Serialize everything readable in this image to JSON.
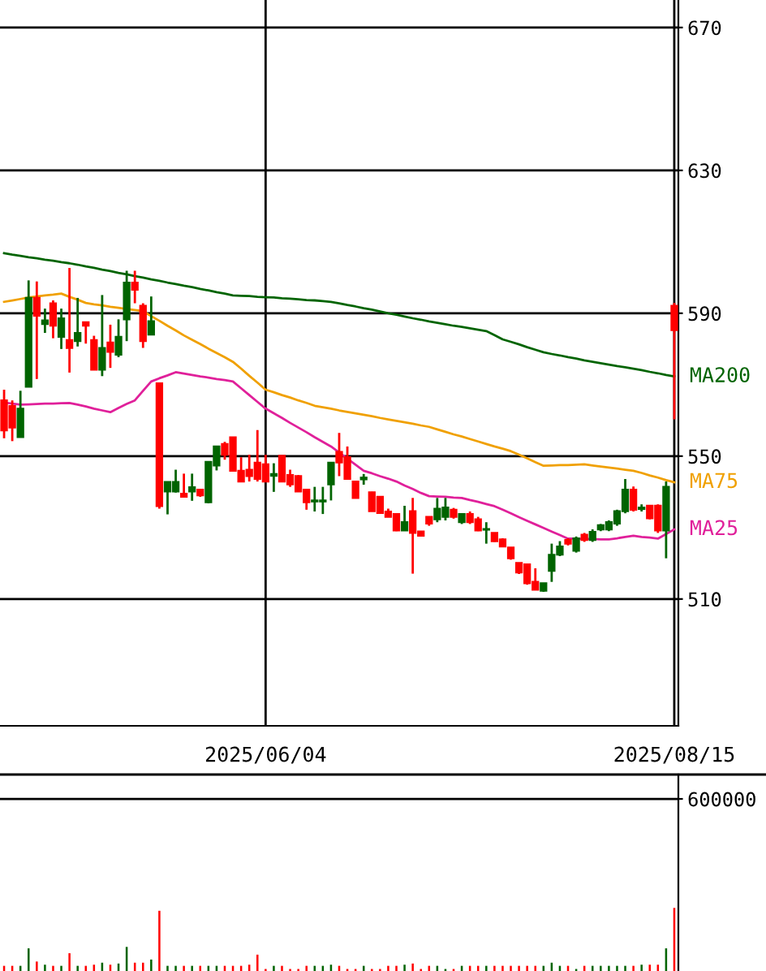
{
  "chart_data": [
    {
      "type": "candlestick",
      "categories": [
        null,
        null,
        null,
        null,
        null,
        null,
        null,
        null,
        null,
        null,
        null,
        null,
        null,
        null,
        null,
        null,
        null,
        null,
        null,
        null,
        null,
        null,
        null,
        null,
        null,
        null,
        null,
        null,
        null,
        null,
        null,
        null,
        "2025/06/04",
        null,
        null,
        null,
        null,
        null,
        null,
        null,
        null,
        null,
        null,
        null,
        null,
        null,
        null,
        null,
        null,
        null,
        null,
        null,
        null,
        null,
        null,
        null,
        null,
        null,
        null,
        null,
        null,
        null,
        null,
        null,
        null,
        null,
        null,
        null,
        null,
        null,
        null,
        null,
        null,
        null,
        null,
        null,
        null,
        null,
        null,
        null,
        null,
        null,
        "2025/08/15"
      ],
      "ohlc": [
        [
          565.6,
          568.6,
          555.0,
          557.2
        ],
        [
          564.0,
          565.6,
          554.2,
          558.0
        ],
        [
          555.3,
          568.3,
          555.3,
          563.3
        ],
        [
          569.4,
          599.2,
          569.4,
          594.3
        ],
        [
          594.3,
          598.9,
          571.6,
          589.3
        ],
        [
          587.0,
          591.3,
          584.5,
          588.0
        ],
        [
          592.8,
          593.6,
          583.0,
          586.5
        ],
        [
          583.4,
          591.3,
          580.0,
          588.6
        ],
        [
          582.5,
          602.7,
          573.4,
          580.3
        ],
        [
          582.2,
          594.3,
          580.7,
          584.5
        ],
        [
          587.5,
          587.5,
          581.5,
          586.5
        ],
        [
          582.5,
          583.7,
          574.2,
          574.2
        ],
        [
          574.2,
          595.1,
          572.4,
          580.3
        ],
        [
          581.8,
          586.8,
          574.7,
          579.2
        ],
        [
          578.4,
          588.3,
          577.7,
          583.4
        ],
        [
          588.3,
          601.9,
          582.2,
          598.6
        ],
        [
          598.6,
          601.9,
          592.8,
          596.6
        ],
        [
          592.1,
          592.8,
          580.3,
          582.2
        ],
        [
          584.0,
          594.7,
          584.0,
          587.8
        ],
        [
          570.4,
          570.4,
          535.3,
          536.0
        ],
        [
          540.1,
          542.8,
          533.7,
          542.8
        ],
        [
          540.1,
          546.2,
          539.8,
          542.8
        ],
        [
          539.5,
          545.1,
          538.6,
          538.6
        ],
        [
          540.1,
          545.1,
          537.5,
          541.3
        ],
        [
          540.6,
          540.6,
          538.6,
          539.0
        ],
        [
          537.1,
          548.4,
          536.8,
          548.4
        ],
        [
          547.4,
          552.7,
          546.0,
          552.7
        ],
        [
          553.4,
          554.0,
          549.0,
          550.4
        ],
        [
          555.3,
          555.3,
          545.9,
          545.9
        ],
        [
          545.9,
          549.7,
          542.9,
          542.9
        ],
        [
          546.2,
          550.4,
          542.9,
          544.4
        ],
        [
          548.2,
          557.3,
          542.9,
          543.6
        ],
        [
          547.7,
          550.4,
          542.9,
          542.9
        ],
        [
          544.5,
          548.0,
          540.0,
          545.0
        ],
        [
          550.1,
          550.1,
          542.9,
          542.9
        ],
        [
          544.7,
          546.2,
          541.4,
          542.1
        ],
        [
          544.4,
          544.7,
          540.1,
          540.1
        ],
        [
          540.6,
          540.6,
          535.0,
          537.1
        ],
        [
          537.3,
          541.4,
          534.5,
          537.6
        ],
        [
          537.3,
          541.4,
          533.8,
          537.6
        ],
        [
          542.1,
          548.2,
          537.6,
          548.2
        ],
        [
          551.2,
          556.5,
          544.4,
          548.2
        ],
        [
          549.7,
          552.7,
          543.6,
          543.6
        ],
        [
          542.9,
          542.9,
          538.3,
          538.3
        ],
        [
          543.5,
          545.0,
          542.0,
          544.0
        ],
        [
          539.9,
          540.0,
          534.6,
          534.6
        ],
        [
          538.6,
          538.6,
          534.0,
          534.1
        ],
        [
          534.5,
          535.3,
          533.0,
          533.0
        ],
        [
          533.8,
          534.0,
          529.0,
          529.2
        ],
        [
          529.2,
          536.1,
          529.2,
          531.5
        ],
        [
          534.6,
          538.3,
          517.1,
          528.5
        ],
        [
          528.9,
          529.0,
          527.5,
          527.7
        ],
        [
          533.0,
          533.0,
          530.5,
          531.1
        ],
        [
          532.3,
          538.3,
          531.5,
          535.3
        ],
        [
          533.0,
          538.3,
          532.0,
          535.6
        ],
        [
          535.0,
          535.5,
          532.5,
          533.0
        ],
        [
          531.5,
          534.0,
          531.0,
          533.8
        ],
        [
          533.8,
          534.5,
          531.0,
          531.5
        ],
        [
          532.3,
          533.0,
          529.0,
          529.2
        ],
        [
          529.4,
          531.5,
          525.5,
          529.6
        ],
        [
          528.5,
          528.5,
          526.0,
          526.2
        ],
        [
          526.7,
          527.0,
          524.5,
          524.7
        ],
        [
          524.4,
          524.4,
          521.0,
          521.4
        ],
        [
          520.1,
          520.1,
          517.0,
          517.4
        ],
        [
          519.7,
          519.7,
          514.0,
          514.4
        ],
        [
          514.8,
          518.6,
          512.5,
          512.6
        ],
        [
          512.3,
          514.5,
          512.0,
          514.4
        ],
        [
          517.9,
          525.5,
          514.8,
          522.4
        ],
        [
          522.4,
          526.2,
          522.0,
          524.7
        ],
        [
          526.5,
          527.0,
          525.0,
          525.5
        ],
        [
          523.5,
          527.5,
          523.0,
          527.0
        ],
        [
          528.0,
          528.5,
          526.0,
          526.5
        ],
        [
          526.5,
          529.5,
          526.0,
          528.8
        ],
        [
          529.5,
          531.0,
          529.0,
          530.7
        ],
        [
          529.5,
          532.0,
          529.0,
          531.5
        ],
        [
          531.1,
          535.0,
          530.5,
          534.6
        ],
        [
          534.6,
          543.6,
          534.0,
          540.6
        ],
        [
          540.6,
          541.5,
          534.5,
          535.0
        ],
        [
          535.2,
          536.5,
          534.5,
          535.6
        ],
        [
          536.1,
          536.1,
          532.3,
          532.6
        ],
        [
          536.1,
          536.5,
          528.5,
          529.2
        ],
        [
          529.2,
          542.9,
          521.4,
          541.4
        ],
        [
          592.1,
          592.9,
          560.3,
          585.3
        ]
      ],
      "colors": [
        "#ff0000",
        "#ff0000",
        "#006400",
        "#006400",
        "#ff0000",
        "#006400",
        "#ff0000",
        "#006400",
        "#ff0000",
        "#006400",
        "#ff0000",
        "#ff0000",
        "#006400",
        "#ff0000",
        "#006400",
        "#006400",
        "#ff0000",
        "#ff0000",
        "#006400",
        "#ff0000",
        "#006400",
        "#006400",
        "#ff0000",
        "#006400",
        "#ff0000",
        "#006400",
        "#006400",
        "#ff0000",
        "#ff0000",
        "#ff0000",
        "#ff0000",
        "#ff0000",
        "#ff0000",
        "#006400",
        "#ff0000",
        "#ff0000",
        "#ff0000",
        "#ff0000",
        "#006400",
        "#006400",
        "#006400",
        "#ff0000",
        "#ff0000",
        "#ff0000",
        "#006400",
        "#ff0000",
        "#ff0000",
        "#ff0000",
        "#ff0000",
        "#006400",
        "#ff0000",
        "#ff0000",
        "#ff0000",
        "#006400",
        "#006400",
        "#ff0000",
        "#006400",
        "#ff0000",
        "#ff0000",
        "#006400",
        "#ff0000",
        "#ff0000",
        "#ff0000",
        "#ff0000",
        "#ff0000",
        "#ff0000",
        "#006400",
        "#006400",
        "#006400",
        "#ff0000",
        "#006400",
        "#ff0000",
        "#006400",
        "#006400",
        "#006400",
        "#006400",
        "#006400",
        "#ff0000",
        "#006400",
        "#ff0000",
        "#ff0000",
        "#006400",
        "#ff0000"
      ],
      "series": [
        {
          "name": "MA200",
          "type": "line",
          "color": "#006400",
          "values": [
            606.8,
            606.4,
            606.1,
            605.7,
            605.4,
            605.0,
            604.7,
            604.3,
            604.0,
            603.6,
            603.1,
            602.7,
            602.2,
            601.8,
            601.3,
            600.9,
            600.4,
            600.0,
            599.5,
            599.1,
            598.6,
            598.2,
            597.7,
            597.3,
            596.8,
            596.4,
            595.9,
            595.5,
            595.0,
            594.9,
            594.8,
            594.6,
            594.5,
            594.4,
            594.2,
            594.1,
            593.9,
            593.7,
            593.6,
            593.4,
            593.2,
            592.8,
            592.3,
            591.9,
            591.4,
            591.0,
            590.5,
            590.0,
            589.6,
            589.1,
            588.6,
            588.2,
            587.7,
            587.3,
            586.9,
            586.5,
            586.2,
            585.8,
            585.4,
            585.0,
            583.9,
            582.7,
            582.0,
            581.3,
            580.5,
            579.8,
            579.1,
            578.6,
            578.2,
            577.7,
            577.3,
            576.8,
            576.4,
            576.0,
            575.6,
            575.2,
            574.9,
            574.5,
            574.1,
            573.6,
            573.2,
            572.7,
            572.3
          ]
        },
        {
          "name": "MA75",
          "type": "line",
          "color": "#f0a000",
          "values": [
            593.2,
            593.6,
            594.0,
            594.4,
            594.7,
            595.0,
            595.2,
            595.5,
            594.6,
            593.8,
            592.9,
            592.5,
            592.2,
            591.8,
            591.5,
            591.2,
            590.9,
            590.6,
            589.2,
            587.9,
            586.5,
            585.2,
            583.8,
            582.6,
            581.4,
            580.1,
            578.9,
            577.7,
            576.4,
            574.5,
            572.5,
            570.6,
            568.6,
            567.9,
            567.1,
            566.4,
            565.6,
            564.9,
            564.1,
            563.7,
            563.3,
            562.8,
            562.4,
            562.0,
            561.6,
            561.2,
            560.7,
            560.3,
            559.9,
            559.5,
            559.1,
            558.6,
            558.2,
            557.5,
            556.8,
            556.1,
            555.5,
            554.8,
            554.1,
            553.4,
            552.7,
            552.1,
            551.4,
            550.4,
            549.4,
            548.3,
            547.3,
            547.4,
            547.5,
            547.5,
            547.6,
            547.7,
            547.4,
            547.1,
            546.8,
            546.5,
            546.2,
            545.9,
            545.3,
            544.6,
            544.0,
            543.3,
            542.7
          ]
        },
        {
          "name": "MA25",
          "type": "line",
          "color": "#e0209a",
          "values": [
            565.0,
            564.7,
            564.4,
            564.5,
            564.6,
            564.7,
            564.7,
            564.8,
            564.9,
            564.4,
            563.9,
            563.3,
            562.8,
            562.3,
            563.5,
            564.6,
            565.6,
            568.3,
            570.9,
            571.8,
            572.6,
            573.5,
            573.1,
            572.7,
            572.3,
            572.0,
            571.6,
            571.3,
            570.9,
            569.0,
            567.1,
            565.2,
            563.3,
            562.0,
            560.7,
            559.3,
            558.0,
            556.7,
            555.3,
            554.0,
            552.7,
            551.0,
            549.3,
            547.6,
            545.9,
            545.2,
            544.4,
            543.7,
            542.9,
            541.8,
            540.8,
            539.7,
            538.8,
            538.7,
            538.6,
            538.4,
            538.3,
            537.7,
            537.2,
            536.6,
            536.0,
            535.0,
            534.0,
            532.9,
            531.9,
            530.9,
            529.9,
            528.9,
            527.9,
            526.9,
            526.9,
            526.8,
            526.8,
            526.7,
            526.7,
            527.0,
            527.4,
            527.7,
            527.4,
            527.2,
            526.9,
            528.2,
            529.5
          ]
        }
      ],
      "ylim": [
        474.5,
        677.7
      ],
      "yticks": [
        510,
        550,
        590,
        630,
        670
      ],
      "grid": true
    },
    {
      "type": "bar",
      "tick_labels": "y",
      "ylim": [
        0,
        685000
      ],
      "yticks": [
        600000
      ],
      "grid": "y",
      "categories": [
        null,
        null,
        null,
        null,
        null,
        null,
        null,
        null,
        null,
        null,
        null,
        null,
        null,
        null,
        null,
        null,
        null,
        null,
        null,
        null,
        null,
        null,
        null,
        null,
        null,
        null,
        null,
        null,
        null,
        null,
        null,
        null,
        null,
        null,
        null,
        null,
        null,
        null,
        null,
        null,
        null,
        null,
        null,
        null,
        null,
        null,
        null,
        null,
        null,
        null,
        null,
        null,
        null,
        null,
        null,
        null,
        null,
        null,
        null,
        null,
        null,
        null,
        null,
        null,
        null,
        null,
        null,
        null,
        null,
        null,
        null,
        null,
        null,
        null,
        null,
        null,
        null,
        null,
        null,
        null,
        null,
        null,
        null
      ],
      "values": [
        18000,
        18000,
        18000,
        79000,
        33000,
        22000,
        18000,
        18000,
        62000,
        18000,
        18000,
        22000,
        29000,
        22000,
        26000,
        84000,
        29000,
        29000,
        40000,
        210000,
        18000,
        18000,
        18000,
        18000,
        18000,
        18000,
        18000,
        18000,
        18000,
        18000,
        22000,
        57000,
        7000,
        18000,
        18000,
        7000,
        7000,
        18000,
        18000,
        18000,
        22000,
        18000,
        7000,
        7000,
        18000,
        7000,
        7000,
        18000,
        18000,
        22000,
        26000,
        7000,
        18000,
        18000,
        7000,
        7000,
        18000,
        18000,
        18000,
        18000,
        18000,
        18000,
        18000,
        18000,
        18000,
        18000,
        18000,
        29000,
        18000,
        18000,
        7000,
        18000,
        18000,
        18000,
        18000,
        18000,
        18000,
        18000,
        22000,
        22000,
        22000,
        79000,
        220000
      ],
      "colors": [
        "#ff0000",
        "#ff0000",
        "#006400",
        "#006400",
        "#ff0000",
        "#006400",
        "#ff0000",
        "#006400",
        "#ff0000",
        "#006400",
        "#ff0000",
        "#ff0000",
        "#006400",
        "#ff0000",
        "#006400",
        "#006400",
        "#ff0000",
        "#ff0000",
        "#006400",
        "#ff0000",
        "#006400",
        "#006400",
        "#ff0000",
        "#006400",
        "#ff0000",
        "#006400",
        "#006400",
        "#ff0000",
        "#ff0000",
        "#ff0000",
        "#ff0000",
        "#ff0000",
        "#ff0000",
        "#006400",
        "#ff0000",
        "#ff0000",
        "#ff0000",
        "#ff0000",
        "#006400",
        "#006400",
        "#006400",
        "#ff0000",
        "#ff0000",
        "#ff0000",
        "#006400",
        "#ff0000",
        "#ff0000",
        "#ff0000",
        "#ff0000",
        "#006400",
        "#ff0000",
        "#ff0000",
        "#ff0000",
        "#006400",
        "#006400",
        "#ff0000",
        "#006400",
        "#ff0000",
        "#ff0000",
        "#006400",
        "#ff0000",
        "#ff0000",
        "#ff0000",
        "#ff0000",
        "#ff0000",
        "#ff0000",
        "#006400",
        "#006400",
        "#006400",
        "#ff0000",
        "#006400",
        "#ff0000",
        "#006400",
        "#006400",
        "#006400",
        "#006400",
        "#006400",
        "#ff0000",
        "#006400",
        "#ff0000",
        "#ff0000",
        "#006400",
        "#ff0000"
      ]
    }
  ]
}
